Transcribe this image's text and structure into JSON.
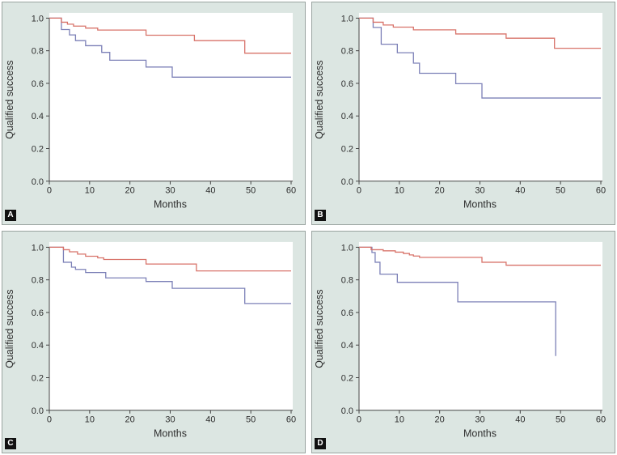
{
  "colors": {
    "panel_background": "#dce6e2",
    "panel_border": "#9aa4a0",
    "plot_background": "#ffffff",
    "axis": "#444444",
    "text": "#2e2e2e",
    "series_red": "#d8736a",
    "series_blue": "#7c80b7"
  },
  "chart_data": [
    {
      "panel": "A",
      "type": "line",
      "subtype": "kaplan-meier-step",
      "title": "",
      "xlabel": "Months",
      "ylabel": "Qualified success",
      "xlim": [
        0,
        60
      ],
      "ylim": [
        0.0,
        1.0
      ],
      "x_ticks": [
        "0",
        "10",
        "20",
        "30",
        "40",
        "50",
        "60"
      ],
      "y_ticks": [
        "0.0",
        "0.2",
        "0.4",
        "0.6",
        "0.8",
        "1.0"
      ],
      "grid": false,
      "legend": "none",
      "series": [
        {
          "name": "group-red",
          "color": "#d8736a",
          "end_x": 60,
          "points": [
            [
              0,
              1.0
            ],
            [
              3,
              0.975
            ],
            [
              4.5,
              0.963
            ],
            [
              6,
              0.951
            ],
            [
              9,
              0.939
            ],
            [
              12,
              0.927
            ],
            [
              24,
              0.895
            ],
            [
              36,
              0.862
            ],
            [
              48.5,
              0.785
            ]
          ]
        },
        {
          "name": "group-blue",
          "color": "#7c80b7",
          "end_x": 60,
          "points": [
            [
              0,
              1.0
            ],
            [
              3,
              0.93
            ],
            [
              5,
              0.897
            ],
            [
              6.5,
              0.862
            ],
            [
              9,
              0.831
            ],
            [
              13,
              0.79
            ],
            [
              15,
              0.742
            ],
            [
              24,
              0.7
            ],
            [
              30.5,
              0.638
            ]
          ]
        }
      ]
    },
    {
      "panel": "B",
      "type": "line",
      "subtype": "kaplan-meier-step",
      "title": "",
      "xlabel": "Months",
      "ylabel": "Qualified success",
      "xlim": [
        0,
        60
      ],
      "ylim": [
        0.0,
        1.0
      ],
      "x_ticks": [
        "0",
        "10",
        "20",
        "30",
        "40",
        "50",
        "60"
      ],
      "y_ticks": [
        "0.0",
        "0.2",
        "0.4",
        "0.6",
        "0.8",
        "1.0"
      ],
      "grid": false,
      "legend": "none",
      "series": [
        {
          "name": "group-red",
          "color": "#d8736a",
          "end_x": 60,
          "points": [
            [
              0,
              1.0
            ],
            [
              3.5,
              0.975
            ],
            [
              6,
              0.958
            ],
            [
              8.5,
              0.945
            ],
            [
              13.5,
              0.928
            ],
            [
              24,
              0.903
            ],
            [
              36.5,
              0.877
            ],
            [
              48.5,
              0.815
            ]
          ]
        },
        {
          "name": "group-blue",
          "color": "#7c80b7",
          "end_x": 60,
          "points": [
            [
              0,
              1.0
            ],
            [
              3.5,
              0.943
            ],
            [
              5.5,
              0.84
            ],
            [
              9.5,
              0.788
            ],
            [
              13.5,
              0.724
            ],
            [
              15,
              0.662
            ],
            [
              24,
              0.598
            ],
            [
              30.5,
              0.51
            ]
          ]
        }
      ]
    },
    {
      "panel": "C",
      "type": "line",
      "subtype": "kaplan-meier-step",
      "title": "",
      "xlabel": "Months",
      "ylabel": "Qualified success",
      "xlim": [
        0,
        60
      ],
      "ylim": [
        0.0,
        1.0
      ],
      "x_ticks": [
        "0",
        "10",
        "20",
        "30",
        "40",
        "50",
        "60"
      ],
      "y_ticks": [
        "0.0",
        "0.2",
        "0.4",
        "0.6",
        "0.8",
        "1.0"
      ],
      "grid": false,
      "legend": "none",
      "series": [
        {
          "name": "group-red",
          "color": "#d8736a",
          "end_x": 60,
          "points": [
            [
              0,
              1.0
            ],
            [
              3.5,
              0.985
            ],
            [
              5,
              0.972
            ],
            [
              7,
              0.958
            ],
            [
              9,
              0.945
            ],
            [
              12,
              0.935
            ],
            [
              13.5,
              0.925
            ],
            [
              24,
              0.897
            ],
            [
              36.5,
              0.855
            ]
          ]
        },
        {
          "name": "group-blue",
          "color": "#7c80b7",
          "end_x": 60,
          "points": [
            [
              0,
              1.0
            ],
            [
              3.5,
              0.908
            ],
            [
              5.5,
              0.878
            ],
            [
              6.5,
              0.864
            ],
            [
              9,
              0.845
            ],
            [
              14,
              0.812
            ],
            [
              24,
              0.79
            ],
            [
              30.5,
              0.748
            ],
            [
              48.5,
              0.655
            ]
          ]
        }
      ]
    },
    {
      "panel": "D",
      "type": "line",
      "subtype": "kaplan-meier-step",
      "title": "",
      "xlabel": "Months",
      "ylabel": "Qualified success",
      "xlim": [
        0,
        60
      ],
      "ylim": [
        0.0,
        1.0
      ],
      "x_ticks": [
        "0",
        "10",
        "20",
        "30",
        "40",
        "50",
        "60"
      ],
      "y_ticks": [
        "0.0",
        "0.2",
        "0.4",
        "0.6",
        "0.8",
        "1.0"
      ],
      "grid": false,
      "legend": "none",
      "series": [
        {
          "name": "group-red",
          "color": "#d8736a",
          "end_x": 60,
          "points": [
            [
              0,
              1.0
            ],
            [
              3,
              0.985
            ],
            [
              6,
              0.978
            ],
            [
              9,
              0.97
            ],
            [
              11,
              0.962
            ],
            [
              12.5,
              0.953
            ],
            [
              13.5,
              0.946
            ],
            [
              15,
              0.938
            ],
            [
              30.5,
              0.908
            ],
            [
              36.5,
              0.89
            ]
          ]
        },
        {
          "name": "group-blue",
          "color": "#7c80b7",
          "end_x": null,
          "points": [
            [
              0,
              1.0
            ],
            [
              3.2,
              0.968
            ],
            [
              4,
              0.908
            ],
            [
              5.2,
              0.835
            ],
            [
              9.5,
              0.785
            ],
            [
              24.5,
              0.665
            ],
            [
              48.8,
              0.333
            ]
          ]
        }
      ]
    }
  ]
}
